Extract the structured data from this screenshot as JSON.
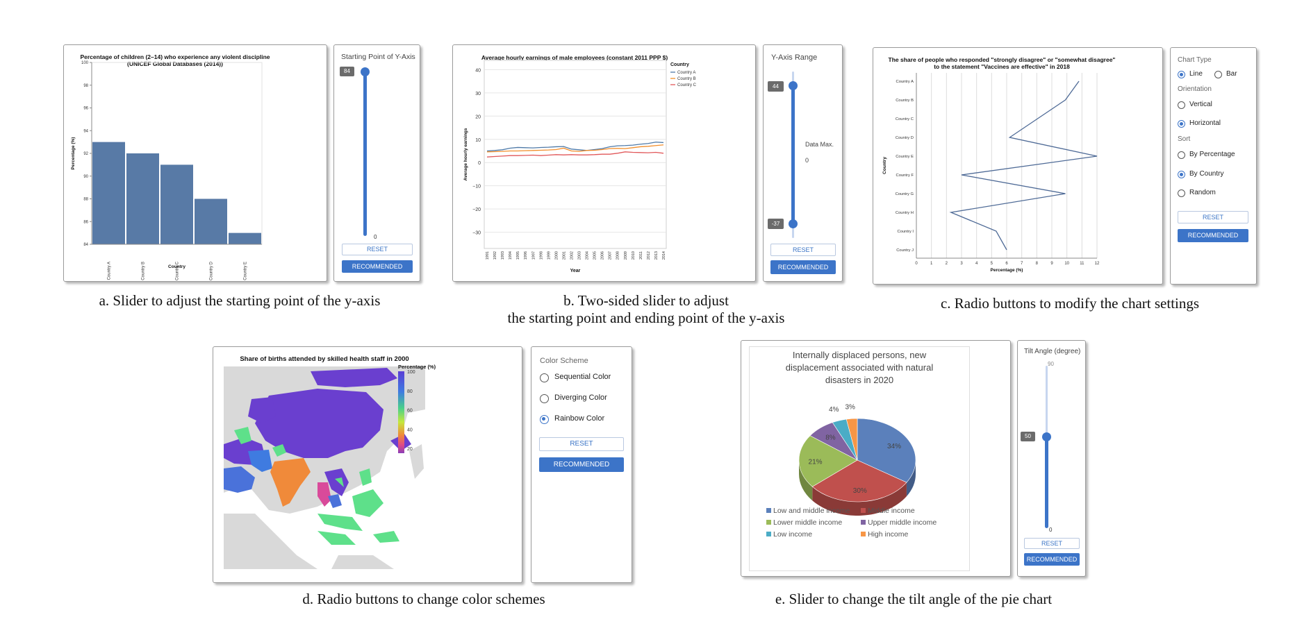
{
  "captions": {
    "a": "a. Slider to adjust the starting point of the y-axis",
    "b1": "b. Two-sided slider to adjust",
    "b2": "the starting point and ending point of the y-axis",
    "c": "c. Radio buttons to modify the chart settings",
    "d": "d. Radio buttons to change color schemes",
    "e": "e. Slider to change the tilt angle of the pie chart"
  },
  "panel_a": {
    "control_title": "Starting Point of Y-Axis",
    "slider_value": "84",
    "slider_min": "0",
    "reset_label": "RESET",
    "recommended_label": "RECOMMENDED"
  },
  "panel_b": {
    "control_title": "Y-Axis Range",
    "upper_value": "44",
    "lower_value": "-37",
    "data_max_label": "Data Max.",
    "data_min_value": "0",
    "reset_label": "RESET",
    "recommended_label": "RECOMMENDED"
  },
  "panel_c": {
    "chart_type_label": "Chart Type",
    "line_label": "Line",
    "bar_label": "Bar",
    "orientation_label": "Orientation",
    "vertical_label": "Vertical",
    "horizontal_label": "Horizontal",
    "sort_label": "Sort",
    "by_percentage_label": "By Percentage",
    "by_country_label": "By Country",
    "random_label": "Random",
    "selected": {
      "chart_type": "Line",
      "orientation": "Horizontal",
      "sort": "By Country"
    },
    "reset_label": "RESET",
    "recommended_label": "RECOMMENDED"
  },
  "panel_d": {
    "color_scheme_label": "Color Scheme",
    "sequential_label": "Sequential Color",
    "diverging_label": "Diverging Color",
    "rainbow_label": "Rainbow Color",
    "selected": "Rainbow Color",
    "reset_label": "RESET",
    "recommended_label": "RECOMMENDED"
  },
  "panel_e": {
    "control_title": "Tilt Angle (degree)",
    "slider_value": "50",
    "slider_max": "90",
    "slider_min": "0",
    "reset_label": "RESET",
    "recommended_label": "RECOMMENDED"
  },
  "colors": {
    "bar": "#587aa6",
    "accent": "#3c74c8",
    "country_a": "#4e79a7",
    "country_b": "#f28e2b",
    "country_c": "#e15759",
    "line_c": "#4e6a96",
    "map_land": "#d9d9d9",
    "map_rainbow_high": "#6a3fcf",
    "pie": [
      "#5b80bb",
      "#c0504d",
      "#9bbb59",
      "#8064a2",
      "#4bacc6",
      "#f79646"
    ]
  },
  "chart_data": [
    {
      "type": "bar",
      "title": "Percentage of children (2–14) who experience any violent discipline",
      "subtitle": "(UNICEF Global Databases (2014))",
      "categories": [
        "Country A",
        "Country B",
        "Country C",
        "Country D",
        "Country E"
      ],
      "values": [
        93,
        92,
        91,
        88,
        85
      ],
      "xlabel": "Country",
      "ylabel": "Percentage (%)",
      "ylim": [
        84,
        100
      ],
      "yticks": [
        "84",
        "86",
        "88",
        "90",
        "92",
        "94",
        "96",
        "98",
        "100"
      ],
      "grid": false
    },
    {
      "type": "line",
      "title": "Average hourly earnings of male employees (constant 2011 PPP $)",
      "xlabel": "Year",
      "ylabel": "Average hourly earnings",
      "ylim": [
        -37,
        44
      ],
      "yticks": [
        "−30",
        "−20",
        "−10",
        "0",
        "10",
        "20",
        "30",
        "40"
      ],
      "legend_title": "Country",
      "legend_placement": "top-right",
      "x": [
        "1991",
        "1992",
        "1993",
        "1994",
        "1995",
        "1996",
        "1997",
        "1998",
        "1999",
        "2000",
        "2001",
        "2002",
        "2003",
        "2004",
        "2005",
        "2006",
        "2007",
        "2008",
        "2009",
        "2010",
        "2011",
        "2012",
        "2013",
        "2014"
      ],
      "series": [
        {
          "name": "Country A",
          "values": [
            5.0,
            5.2,
            5.5,
            6.2,
            6.5,
            6.4,
            6.3,
            6.5,
            6.6,
            6.8,
            6.9,
            5.8,
            5.5,
            5.2,
            5.6,
            6.0,
            6.8,
            7.2,
            7.3,
            7.5,
            7.9,
            8.2,
            8.8,
            8.6
          ]
        },
        {
          "name": "Country B",
          "values": [
            4.6,
            4.7,
            4.8,
            5.0,
            5.0,
            5.1,
            5.2,
            5.3,
            5.4,
            5.6,
            6.2,
            5.0,
            4.8,
            5.2,
            5.3,
            5.6,
            6.0,
            6.1,
            6.0,
            6.4,
            6.8,
            7.0,
            7.3,
            7.6
          ]
        },
        {
          "name": "Country C",
          "values": [
            2.4,
            2.6,
            2.8,
            3.0,
            3.0,
            3.1,
            3.2,
            3.0,
            3.2,
            3.4,
            3.3,
            3.4,
            3.3,
            3.3,
            3.4,
            3.6,
            3.6,
            4.0,
            4.6,
            4.4,
            4.3,
            4.2,
            4.4,
            4.0
          ]
        }
      ],
      "grid": true
    },
    {
      "type": "line",
      "orientation": "horizontal",
      "title": "The share of people who responded \"strongly disagree\" or \"somewhat disagree\"",
      "subtitle": "to the statement \"Vaccines are effective\" in 2018",
      "categories": [
        "Country A",
        "Country B",
        "Country C",
        "Country D",
        "Country E",
        "Country F",
        "Country G",
        "Country H",
        "Country I",
        "Country J"
      ],
      "values": [
        10.8,
        9.9,
        null,
        6.2,
        12.0,
        3.0,
        9.9,
        2.3,
        5.3,
        6.0
      ],
      "xlabel": "Percentage (%)",
      "ylabel": "Country",
      "xlim": [
        0,
        12
      ],
      "xticks": [
        "0",
        "1",
        "2",
        "3",
        "4",
        "5",
        "6",
        "7",
        "8",
        "9",
        "10",
        "11",
        "12"
      ],
      "grid": true
    },
    {
      "type": "heatmap",
      "subtype": "choropleth map",
      "title": "Share of births attended by skilled health staff in 2000",
      "legend_title": "Percentage (%)",
      "legend_ticks": [
        "100",
        "80",
        "60",
        "40",
        "20"
      ],
      "color_scheme": "Rainbow Color",
      "range": [
        15,
        100
      ]
    },
    {
      "type": "pie",
      "title": "Internally displaced persons, new displacement associated with natural disasters in 2020",
      "categories": [
        "Low and middle income",
        "Middle income",
        "Lower middle income",
        "Upper middle income",
        "Low income",
        "High income"
      ],
      "values": [
        34,
        30,
        21,
        8,
        4,
        3
      ],
      "value_labels": [
        "34%",
        "30%",
        "21%",
        "8%",
        "4%",
        "3%"
      ],
      "tilt_angle": 50,
      "legend_placement": "bottom"
    }
  ]
}
